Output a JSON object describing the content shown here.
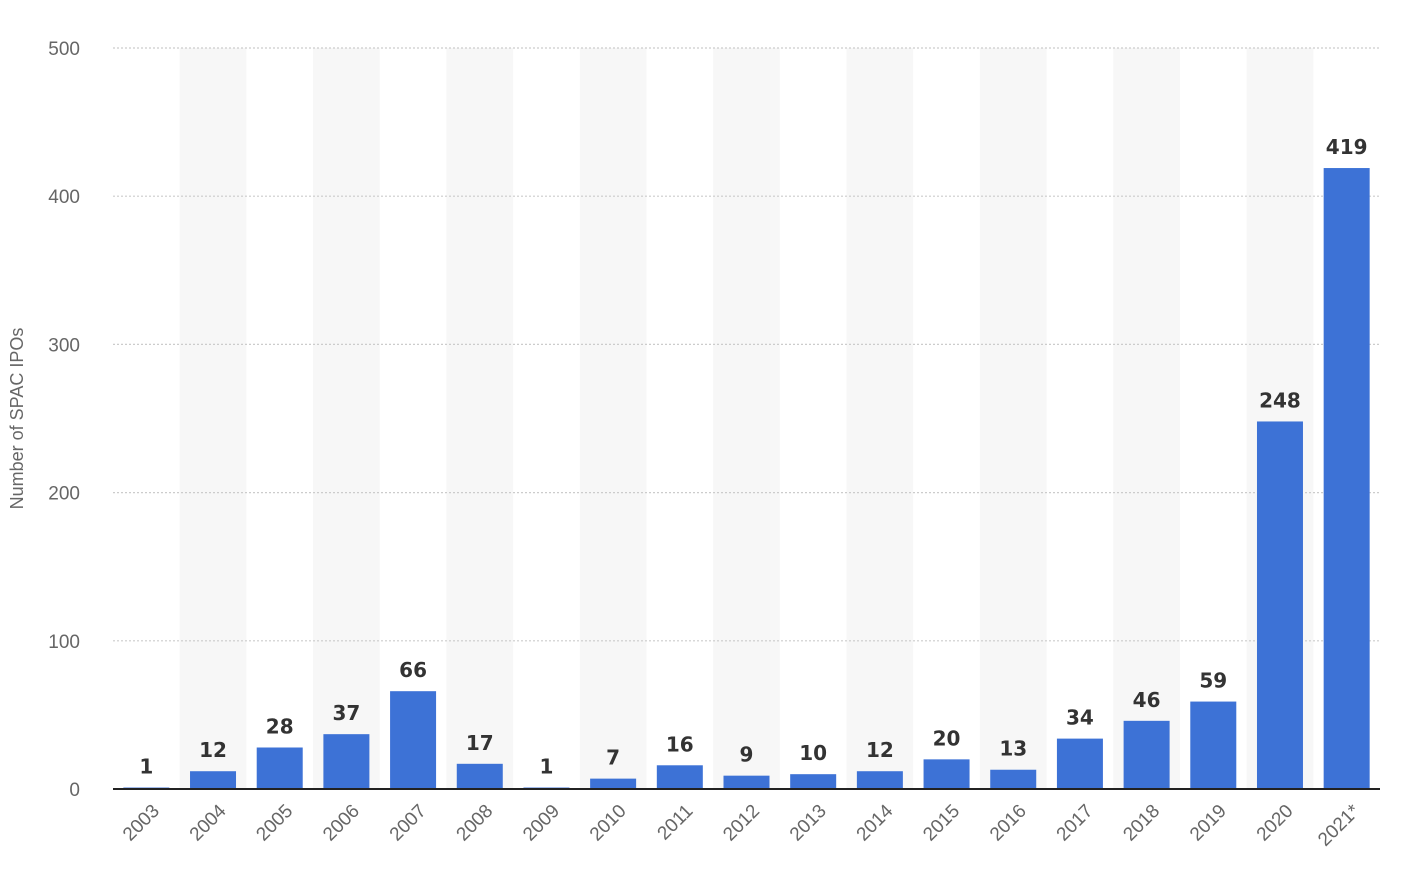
{
  "chart_data": {
    "type": "bar",
    "title": "",
    "xlabel": "",
    "ylabel": "Number of SPAC IPOs",
    "ylim": [
      0,
      500
    ],
    "yticks": [
      0,
      100,
      200,
      300,
      400,
      500
    ],
    "grid": true,
    "categories": [
      "2003",
      "2004",
      "2005",
      "2006",
      "2007",
      "2008",
      "2009",
      "2010",
      "2011",
      "2012",
      "2013",
      "2014",
      "2015",
      "2016",
      "2017",
      "2018",
      "2019",
      "2020",
      "2021*"
    ],
    "series": [
      {
        "values": [
          1,
          12,
          28,
          37,
          66,
          17,
          1,
          7,
          16,
          9,
          10,
          12,
          20,
          13,
          34,
          46,
          59,
          248,
          419
        ]
      }
    ],
    "colors": {
      "bar": "#3d72d6",
      "band": "#f7f7f7",
      "grid": "#cccccc",
      "axis": "#222222"
    }
  }
}
